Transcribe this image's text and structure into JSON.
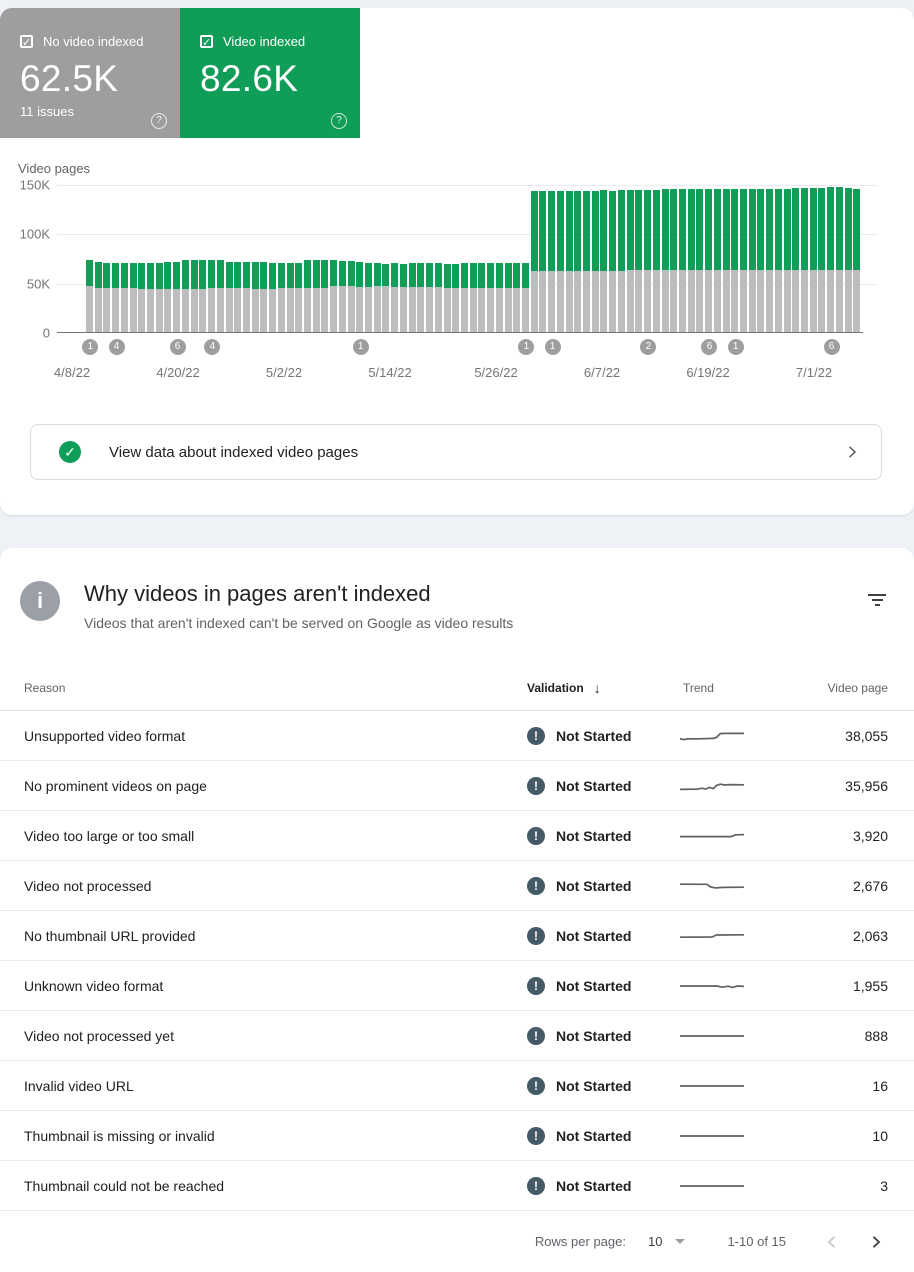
{
  "colors": {
    "green": "#0F9D58",
    "tile_gray": "#9E9E9E",
    "bar_gray": "#BDBDBD",
    "not_started_icon": "#455A64"
  },
  "summary_cards": [
    {
      "label": "No video indexed",
      "value": "62.5K",
      "sub": "11 issues",
      "checked": true
    },
    {
      "label": "Video indexed",
      "value": "82.6K",
      "checked": true
    }
  ],
  "banner": {
    "text": "View data about indexed video pages"
  },
  "section": {
    "title": "Why videos in pages aren't indexed",
    "subtitle": "Videos that aren't indexed can't be served on Google as video results"
  },
  "chart_data": {
    "type": "bar",
    "stacked": true,
    "title": "Video pages",
    "ylim": [
      0,
      150000
    ],
    "yticks": [
      "150K",
      "100K",
      "50K",
      "0"
    ],
    "xticks": [
      "4/8/22",
      "4/20/22",
      "5/2/22",
      "5/14/22",
      "5/26/22",
      "6/7/22",
      "6/19/22",
      "7/1/22"
    ],
    "legend_position": "none",
    "grid": true,
    "series": [
      {
        "name": "No video indexed",
        "color": "#BDBDBD",
        "values": [
          46500,
          44800,
          44500,
          44300,
          44500,
          44200,
          44000,
          43800,
          43600,
          43800,
          44000,
          43700,
          43500,
          43800,
          44600,
          44400,
          44200,
          44500,
          44300,
          44100,
          44000,
          43800,
          44200,
          44500,
          44300,
          44600,
          44400,
          44700,
          46200,
          46400,
          46300,
          46100,
          46000,
          46200,
          46400,
          45800,
          45500,
          45300,
          45600,
          45400,
          45200,
          45000,
          44800,
          45100,
          44900,
          44700,
          44500,
          44600,
          44400,
          44300,
          44400,
          61800,
          61800,
          61800,
          61800,
          61800,
          61800,
          62300,
          62300,
          62300,
          62300,
          62300,
          62500,
          62500,
          62500,
          62500,
          62500,
          62500,
          62500,
          62500,
          62500,
          62500,
          62500,
          62500,
          62500,
          62500,
          62500,
          62500,
          62500,
          62500,
          62500,
          62500,
          62500,
          62500,
          62500,
          62500,
          62500,
          62500,
          62500
        ]
      },
      {
        "name": "Video indexed",
        "color": "#0F9D58",
        "values": [
          26300,
          25800,
          25900,
          25900,
          25900,
          25800,
          25800,
          25800,
          26800,
          26800,
          27000,
          28900,
          29300,
          28800,
          28400,
          28200,
          27000,
          26500,
          27100,
          26700,
          26600,
          26600,
          26000,
          25500,
          26100,
          28200,
          29000,
          28500,
          26800,
          26000,
          25700,
          24900,
          23800,
          23400,
          23000,
          23800,
          23900,
          24500,
          24400,
          24400,
          24400,
          24400,
          24400,
          24500,
          24900,
          25300,
          25700,
          25800,
          25800,
          25700,
          25600,
          80800,
          81000,
          80800,
          81000,
          80900,
          80800,
          81100,
          81000,
          81200,
          81100,
          81300,
          81000,
          81100,
          81200,
          81100,
          82100,
          82000,
          82200,
          82100,
          82300,
          82200,
          82100,
          82300,
          82200,
          82400,
          82500,
          82400,
          82600,
          82500,
          82700,
          83500,
          83700,
          83900,
          83800,
          84000,
          84100,
          83900,
          82600
        ]
      }
    ],
    "issue_markers": [
      {
        "bar_index": 0,
        "count": "1"
      },
      {
        "bar_index": 3,
        "count": "4"
      },
      {
        "bar_index": 10,
        "count": "6"
      },
      {
        "bar_index": 14,
        "count": "4"
      },
      {
        "bar_index": 31,
        "count": "1"
      },
      {
        "bar_index": 50,
        "count": "1"
      },
      {
        "bar_index": 53,
        "count": "1"
      },
      {
        "bar_index": 64,
        "count": "2"
      },
      {
        "bar_index": 71,
        "count": "6"
      },
      {
        "bar_index": 74,
        "count": "1"
      },
      {
        "bar_index": 85,
        "count": "6"
      }
    ]
  },
  "table": {
    "columns": {
      "reason": "Reason",
      "validation": "Validation",
      "trend": "Trend",
      "video_page": "Video page"
    },
    "sort_column": "validation",
    "rows": [
      {
        "reason": "Unsupported video format",
        "validation": "Not Started",
        "video_pages": "38,055",
        "trend": [
          [
            0,
            0.72
          ],
          [
            0.05,
            0.8
          ],
          [
            0.12,
            0.74
          ],
          [
            0.3,
            0.73
          ],
          [
            0.52,
            0.7
          ],
          [
            0.57,
            0.62
          ],
          [
            0.63,
            0.3
          ],
          [
            0.7,
            0.28
          ],
          [
            1,
            0.28
          ]
        ]
      },
      {
        "reason": "No prominent videos on page",
        "validation": "Not Started",
        "video_pages": "35,956",
        "trend": [
          [
            0,
            0.78
          ],
          [
            0.28,
            0.76
          ],
          [
            0.34,
            0.68
          ],
          [
            0.4,
            0.76
          ],
          [
            0.46,
            0.62
          ],
          [
            0.52,
            0.72
          ],
          [
            0.57,
            0.45
          ],
          [
            0.63,
            0.35
          ],
          [
            0.7,
            0.42
          ],
          [
            0.78,
            0.38
          ],
          [
            1,
            0.4
          ]
        ]
      },
      {
        "reason": "Video too large or too small",
        "validation": "Not Started",
        "video_pages": "3,920",
        "trend": [
          [
            0,
            0.55
          ],
          [
            0.8,
            0.55
          ],
          [
            0.87,
            0.4
          ],
          [
            1,
            0.38
          ]
        ]
      },
      {
        "reason": "Video not processed",
        "validation": "Not Started",
        "video_pages": "2,676",
        "trend": [
          [
            0,
            0.35
          ],
          [
            0.42,
            0.36
          ],
          [
            0.48,
            0.58
          ],
          [
            0.56,
            0.66
          ],
          [
            0.68,
            0.62
          ],
          [
            1,
            0.6
          ]
        ]
      },
      {
        "reason": "No thumbnail URL provided",
        "validation": "Not Started",
        "video_pages": "2,063",
        "trend": [
          [
            0,
            0.6
          ],
          [
            0.5,
            0.58
          ],
          [
            0.57,
            0.42
          ],
          [
            1,
            0.4
          ]
        ]
      },
      {
        "reason": "Unknown video format",
        "validation": "Not Started",
        "video_pages": "1,955",
        "trend": [
          [
            0,
            0.5
          ],
          [
            0.58,
            0.5
          ],
          [
            0.66,
            0.6
          ],
          [
            0.75,
            0.52
          ],
          [
            0.82,
            0.62
          ],
          [
            0.9,
            0.5
          ],
          [
            1,
            0.53
          ]
        ]
      },
      {
        "reason": "Video not processed yet",
        "validation": "Not Started",
        "video_pages": "888",
        "trend": [
          [
            0,
            0.5
          ],
          [
            1,
            0.5
          ]
        ]
      },
      {
        "reason": "Invalid video URL",
        "validation": "Not Started",
        "video_pages": "16",
        "trend": [
          [
            0,
            0.5
          ],
          [
            1,
            0.5
          ]
        ]
      },
      {
        "reason": "Thumbnail is missing or invalid",
        "validation": "Not Started",
        "video_pages": "10",
        "trend": [
          [
            0,
            0.5
          ],
          [
            1,
            0.5
          ]
        ]
      },
      {
        "reason": "Thumbnail could not be reached",
        "validation": "Not Started",
        "video_pages": "3",
        "trend": [
          [
            0,
            0.5
          ],
          [
            1,
            0.5
          ]
        ]
      }
    ]
  },
  "pagination": {
    "rows_per_page_label": "Rows per page:",
    "rows_per_page": "10",
    "range": "1-10 of 15"
  }
}
